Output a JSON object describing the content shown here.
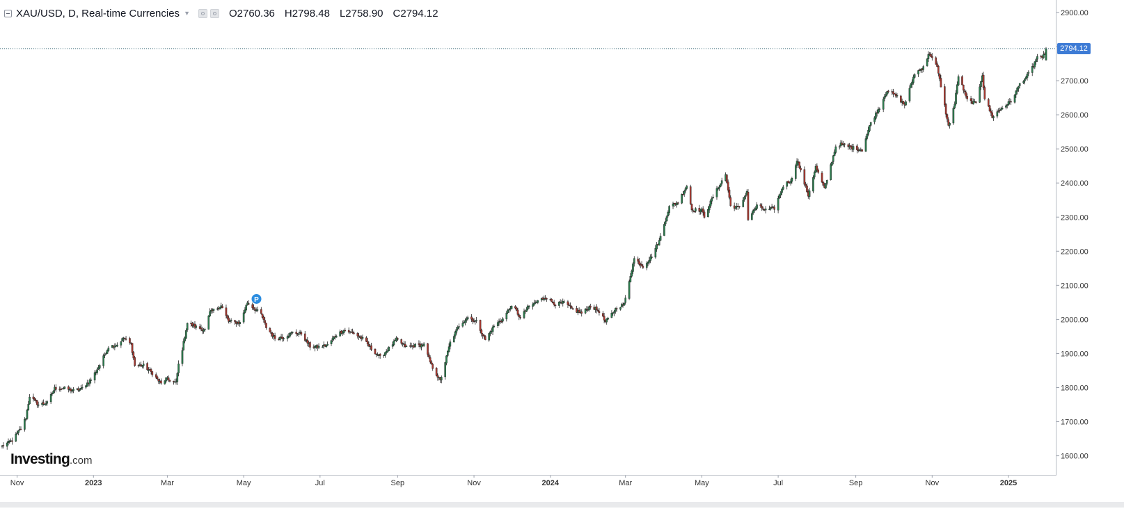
{
  "header": {
    "title": "XAU/USD, D, Real-time Currencies",
    "open": "O2760.36",
    "high": "H2798.48",
    "low": "L2758.90",
    "close": "C2794.12"
  },
  "logo": {
    "brand": "Investing",
    "suffix": ".com"
  },
  "last_price_label": "2794.12",
  "marker": {
    "label": "P"
  },
  "colors": {
    "up": "#2e7d4f",
    "down": "#a83a32",
    "wick": "#222222",
    "marker": "#2c8de0",
    "last": "#3d7bd5"
  },
  "chart_data": {
    "type": "candlestick",
    "title": "XAU/USD, D, Real-time Currencies",
    "ylim": [
      1570,
      2930
    ],
    "y_ticks": [
      "1600.00",
      "1700.00",
      "1800.00",
      "1900.00",
      "2000.00",
      "2100.00",
      "2200.00",
      "2300.00",
      "2400.00",
      "2500.00",
      "2600.00",
      "2700.00",
      "2800.00",
      "2900.00"
    ],
    "x_ticks": [
      "Nov",
      "2023",
      "Mar",
      "May",
      "Jul",
      "Sep",
      "Nov",
      "2024",
      "Mar",
      "May",
      "Jul",
      "Sep",
      "Nov",
      "2025"
    ],
    "x_tick_dates": [
      "2022-11-01",
      "2023-01-01",
      "2023-03-01",
      "2023-05-01",
      "2023-07-01",
      "2023-09-01",
      "2023-11-01",
      "2024-01-01",
      "2024-03-01",
      "2024-05-01",
      "2024-07-01",
      "2024-09-01",
      "2024-11-01",
      "2025-01-01"
    ],
    "x_range": [
      "2022-10-20",
      "2025-01-31"
    ],
    "series": [
      {
        "name": "XAU/USD",
        "close_path": [
          [
            "2022-10-20",
            1628
          ],
          [
            "2022-10-28",
            1645
          ],
          [
            "2022-11-04",
            1680
          ],
          [
            "2022-11-08",
            1712
          ],
          [
            "2022-11-11",
            1775
          ],
          [
            "2022-11-18",
            1750
          ],
          [
            "2022-11-25",
            1755
          ],
          [
            "2022-12-01",
            1798
          ],
          [
            "2022-12-09",
            1797
          ],
          [
            "2022-12-16",
            1792
          ],
          [
            "2022-12-22",
            1795
          ],
          [
            "2022-12-30",
            1824
          ],
          [
            "2023-01-06",
            1866
          ],
          [
            "2023-01-13",
            1920
          ],
          [
            "2023-01-20",
            1926
          ],
          [
            "2023-01-25",
            1945
          ],
          [
            "2023-01-31",
            1928
          ],
          [
            "2023-02-03",
            1865
          ],
          [
            "2023-02-10",
            1865
          ],
          [
            "2023-02-17",
            1842
          ],
          [
            "2023-02-24",
            1811
          ],
          [
            "2023-02-28",
            1826
          ],
          [
            "2023-03-08",
            1814
          ],
          [
            "2023-03-10",
            1868
          ],
          [
            "2023-03-13",
            1913
          ],
          [
            "2023-03-17",
            1989
          ],
          [
            "2023-03-24",
            1978
          ],
          [
            "2023-03-31",
            1969
          ],
          [
            "2023-04-04",
            2020
          ],
          [
            "2023-04-13",
            2040
          ],
          [
            "2023-04-19",
            1994
          ],
          [
            "2023-04-28",
            1990
          ],
          [
            "2023-05-03",
            2040
          ],
          [
            "2023-05-04",
            2050
          ],
          [
            "2023-05-10",
            2030
          ],
          [
            "2023-05-15",
            2015
          ],
          [
            "2023-05-19",
            1977
          ],
          [
            "2023-05-26",
            1945
          ],
          [
            "2023-06-02",
            1948
          ],
          [
            "2023-06-09",
            1961
          ],
          [
            "2023-06-16",
            1958
          ],
          [
            "2023-06-23",
            1921
          ],
          [
            "2023-06-30",
            1919
          ],
          [
            "2023-07-07",
            1925
          ],
          [
            "2023-07-14",
            1955
          ],
          [
            "2023-07-20",
            1968
          ],
          [
            "2023-07-28",
            1959
          ],
          [
            "2023-08-04",
            1943
          ],
          [
            "2023-08-11",
            1914
          ],
          [
            "2023-08-18",
            1889
          ],
          [
            "2023-08-25",
            1915
          ],
          [
            "2023-08-31",
            1941
          ],
          [
            "2023-09-08",
            1919
          ],
          [
            "2023-09-15",
            1923
          ],
          [
            "2023-09-22",
            1925
          ],
          [
            "2023-09-28",
            1865
          ],
          [
            "2023-10-05",
            1820
          ],
          [
            "2023-10-06",
            1833
          ],
          [
            "2023-10-13",
            1932
          ],
          [
            "2023-10-20",
            1982
          ],
          [
            "2023-10-27",
            2006
          ],
          [
            "2023-11-03",
            1993
          ],
          [
            "2023-11-10",
            1940
          ],
          [
            "2023-11-17",
            1981
          ],
          [
            "2023-11-24",
            2001
          ],
          [
            "2023-11-30",
            2036
          ],
          [
            "2023-12-04",
            2030
          ],
          [
            "2023-12-08",
            2004
          ],
          [
            "2023-12-14",
            2035
          ],
          [
            "2023-12-22",
            2053
          ],
          [
            "2023-12-28",
            2065
          ],
          [
            "2024-01-05",
            2045
          ],
          [
            "2024-01-12",
            2049
          ],
          [
            "2024-01-19",
            2029
          ],
          [
            "2024-01-26",
            2018
          ],
          [
            "2024-02-02",
            2039
          ],
          [
            "2024-02-09",
            2024
          ],
          [
            "2024-02-14",
            1992
          ],
          [
            "2024-02-23",
            2035
          ],
          [
            "2024-02-29",
            2044
          ],
          [
            "2024-03-04",
            2114
          ],
          [
            "2024-03-08",
            2178
          ],
          [
            "2024-03-15",
            2156
          ],
          [
            "2024-03-21",
            2180
          ],
          [
            "2024-03-28",
            2230
          ],
          [
            "2024-04-05",
            2330
          ],
          [
            "2024-04-12",
            2344
          ],
          [
            "2024-04-19",
            2392
          ],
          [
            "2024-04-23",
            2322
          ],
          [
            "2024-05-01",
            2320
          ],
          [
            "2024-05-03",
            2302
          ],
          [
            "2024-05-10",
            2360
          ],
          [
            "2024-05-20",
            2425
          ],
          [
            "2024-05-24",
            2333
          ],
          [
            "2024-05-31",
            2327
          ],
          [
            "2024-06-06",
            2375
          ],
          [
            "2024-06-07",
            2294
          ],
          [
            "2024-06-14",
            2333
          ],
          [
            "2024-06-21",
            2321
          ],
          [
            "2024-06-28",
            2326
          ],
          [
            "2024-07-05",
            2392
          ],
          [
            "2024-07-12",
            2411
          ],
          [
            "2024-07-16",
            2469
          ],
          [
            "2024-07-25",
            2364
          ],
          [
            "2024-07-31",
            2447
          ],
          [
            "2024-08-07",
            2382
          ],
          [
            "2024-08-16",
            2507
          ],
          [
            "2024-08-20",
            2513
          ],
          [
            "2024-08-30",
            2503
          ],
          [
            "2024-09-06",
            2497
          ],
          [
            "2024-09-13",
            2577
          ],
          [
            "2024-09-20",
            2622
          ],
          [
            "2024-09-26",
            2672
          ],
          [
            "2024-10-04",
            2653
          ],
          [
            "2024-10-10",
            2629
          ],
          [
            "2024-10-18",
            2721
          ],
          [
            "2024-10-24",
            2736
          ],
          [
            "2024-10-30",
            2781
          ],
          [
            "2024-11-05",
            2738
          ],
          [
            "2024-11-08",
            2685
          ],
          [
            "2024-11-14",
            2566
          ],
          [
            "2024-11-19",
            2632
          ],
          [
            "2024-11-22",
            2715
          ],
          [
            "2024-11-29",
            2643
          ],
          [
            "2024-12-06",
            2633
          ],
          [
            "2024-12-11",
            2718
          ],
          [
            "2024-12-13",
            2648
          ],
          [
            "2024-12-19",
            2594
          ],
          [
            "2024-12-27",
            2621
          ],
          [
            "2025-01-03",
            2640
          ],
          [
            "2025-01-10",
            2690
          ],
          [
            "2025-01-16",
            2715
          ],
          [
            "2025-01-21",
            2745
          ],
          [
            "2025-01-24",
            2771
          ],
          [
            "2025-01-28",
            2763
          ],
          [
            "2025-01-31",
            2794.12
          ]
        ]
      }
    ],
    "last": {
      "open": 2760.36,
      "high": 2798.48,
      "low": 2758.9,
      "close": 2794.12
    },
    "marker_date": "2023-05-04"
  }
}
